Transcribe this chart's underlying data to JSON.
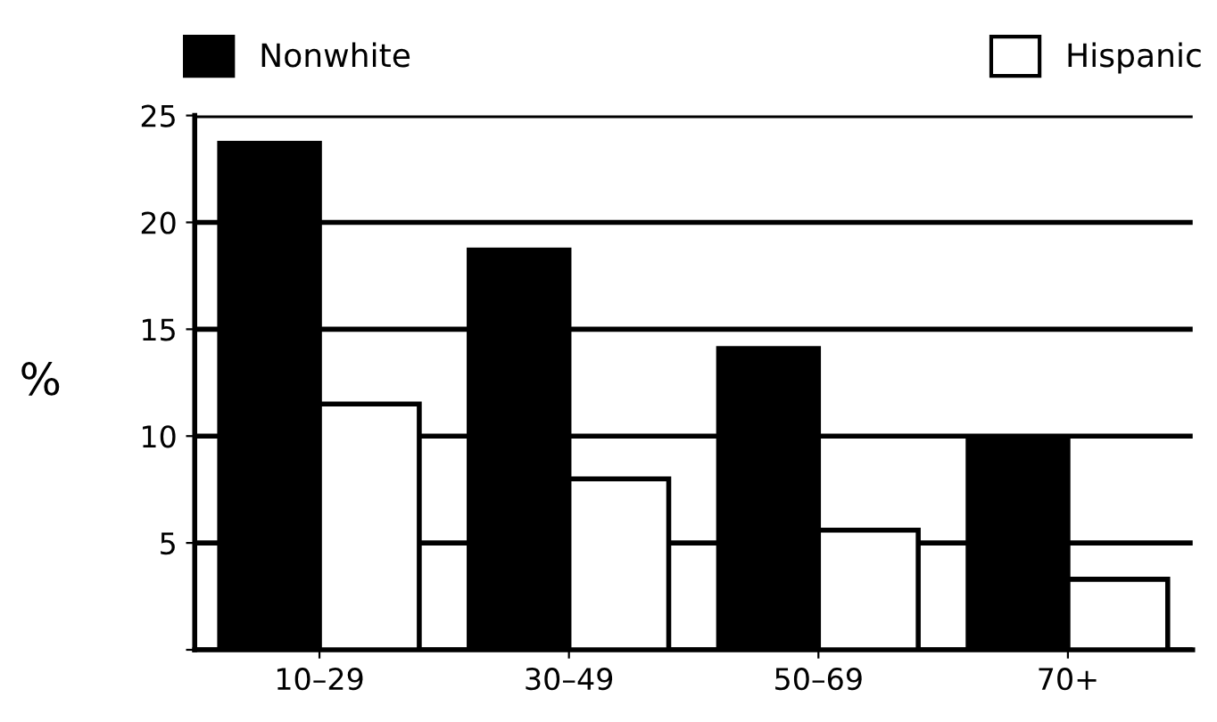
{
  "chart_data": {
    "type": "bar",
    "ylabel": "%",
    "categories": [
      "10–29",
      "30–49",
      "50–69",
      "70+"
    ],
    "series": [
      {
        "name": "Nonwhite",
        "color": "#000000",
        "values": [
          23.7,
          18.7,
          14.1,
          9.9
        ]
      },
      {
        "name": "Hispanic",
        "color": "#ffffff",
        "values": [
          11.5,
          8.0,
          5.6,
          3.3
        ]
      }
    ],
    "ylim": [
      0,
      25
    ],
    "yticks": [
      {
        "value": 0,
        "label": null
      },
      5,
      10,
      15,
      20,
      25
    ],
    "grid": "y",
    "legend": "top"
  }
}
